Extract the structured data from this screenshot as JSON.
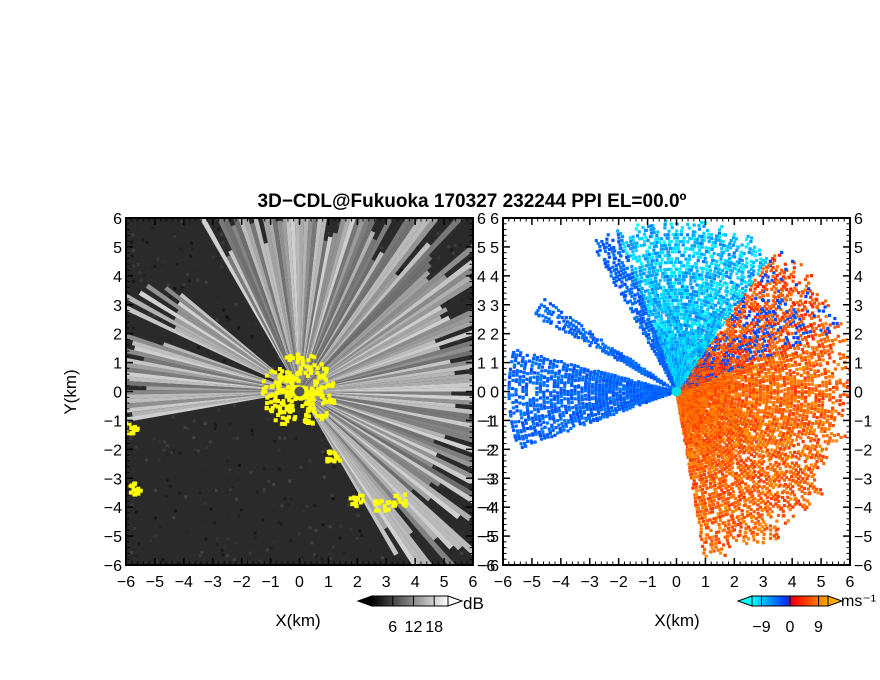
{
  "title": "3D−CDL@Fukuoka 170327 232244 PPI EL=00.0º",
  "chart_data": [
    {
      "type": "heatmap",
      "name": "snr-ppi",
      "xlabel": "X(km)",
      "ylabel": "Y(km)",
      "xlim": [
        -6,
        6
      ],
      "ylim": [
        -6,
        6
      ],
      "x_ticks": [
        "−6",
        "−5",
        "−4",
        "−3",
        "−2",
        "−1",
        "0",
        "1",
        "2",
        "3",
        "4",
        "5",
        "6"
      ],
      "y_ticks": [
        "−6",
        "−5",
        "−4",
        "−3",
        "−2",
        "−1",
        "0",
        "1",
        "2",
        "3",
        "4",
        "5",
        "6"
      ],
      "colorbar": {
        "unit": "dB",
        "ticks": [
          6,
          12,
          18
        ],
        "tick_labels": [
          "6",
          "12",
          "18"
        ],
        "range": [
          0,
          22
        ],
        "colors": [
          "#000000",
          "#ffffff"
        ]
      },
      "highlight_color": "#ffff00"
    },
    {
      "type": "heatmap",
      "name": "doppler-velocity-ppi",
      "xlabel": "X(km)",
      "xlim": [
        -6,
        6
      ],
      "ylim": [
        -6,
        6
      ],
      "x_ticks": [
        "−6",
        "−5",
        "−4",
        "−3",
        "−2",
        "−1",
        "0",
        "1",
        "2",
        "3",
        "4",
        "5",
        "6"
      ],
      "y_ticks": [
        "−6",
        "−5",
        "−4",
        "−3",
        "−2",
        "−1",
        "0",
        "1",
        "2",
        "3",
        "4",
        "5",
        "6"
      ],
      "colorbar": {
        "unit": "ms⁻¹",
        "ticks": [
          -9,
          0,
          9
        ],
        "tick_labels": [
          "−9",
          "0",
          "9"
        ],
        "range": [
          -12,
          12
        ],
        "colors": [
          "#00ffff",
          "#0000ff",
          "#ff0000",
          "#ffaa00"
        ]
      }
    }
  ]
}
